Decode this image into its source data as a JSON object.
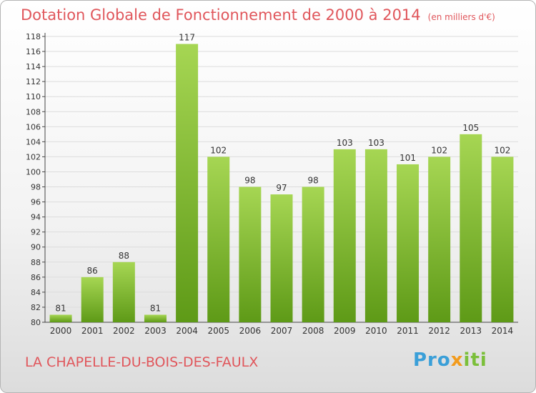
{
  "title": "Dotation Globale de Fonctionnement de 2000 à 2014",
  "unit": "(en milliers d'€)",
  "commune": "LA CHAPELLE-DU-BOIS-DES-FAULX",
  "logo": {
    "part1": "Pro",
    "part2": "x",
    "part3": "iti"
  },
  "colors": {
    "bar_light": "#a6d653",
    "bar_dark": "#5e9a17",
    "title": "#e0565b",
    "grid": "#dcdcdc",
    "axis": "#444444"
  },
  "chart_data": {
    "type": "bar",
    "categories": [
      "2000",
      "2001",
      "2002",
      "2003",
      "2004",
      "2005",
      "2006",
      "2007",
      "2008",
      "2009",
      "2010",
      "2011",
      "2012",
      "2013",
      "2014"
    ],
    "values": [
      81,
      86,
      88,
      81,
      117,
      102,
      98,
      97,
      98,
      103,
      103,
      101,
      102,
      105,
      102
    ],
    "ylim": [
      80,
      118
    ],
    "yticks": [
      80,
      82,
      84,
      86,
      88,
      90,
      92,
      94,
      96,
      98,
      100,
      102,
      104,
      106,
      108,
      110,
      112,
      114,
      116,
      118
    ],
    "grid": true,
    "legend": "none"
  }
}
